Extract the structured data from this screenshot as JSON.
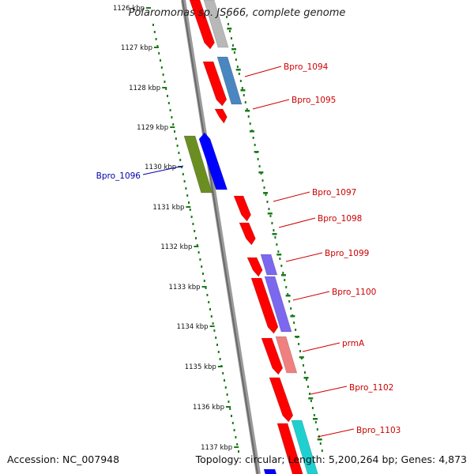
{
  "title": "Polaromonas sp. JS666, complete genome",
  "accession": "Accession: NC_007948",
  "topology": "Topology: circular; Length: 5,200,264 bp; Genes: 4,873",
  "ruler_labels": [
    "1126 kbp",
    "1127 kbp",
    "1128 kbp",
    "1129 kbp",
    "1130 kbp",
    "1131 kbp",
    "1132 kbp",
    "1133 kbp",
    "1134 kbp",
    "1135 kbp",
    "1136 kbp",
    "1137 kbp"
  ],
  "gene_labels": [
    {
      "text": "Bpro_1094",
      "color": "#cc0000"
    },
    {
      "text": "Bpro_1095",
      "color": "#cc0000"
    },
    {
      "text": "Bpro_1096",
      "color": "#0000aa"
    },
    {
      "text": "Bpro_1097",
      "color": "#cc0000"
    },
    {
      "text": "Bpro_1098",
      "color": "#cc0000"
    },
    {
      "text": "Bpro_1099",
      "color": "#cc0000"
    },
    {
      "text": "Bpro_1100",
      "color": "#cc0000"
    },
    {
      "text": "prmA",
      "color": "#cc0000"
    },
    {
      "text": "Bpro_1102",
      "color": "#cc0000"
    },
    {
      "text": "Bpro_1103",
      "color": "#cc0000"
    }
  ],
  "colors": {
    "backbone": "#808080",
    "ruler": "#1a7a1a",
    "gene_red": "#ff0000",
    "gene_grey": "#b8b8b8",
    "gene_steelblue": "#4a86c0",
    "gene_olive": "#6b8e23",
    "gene_blue": "#0000ff",
    "gene_purple": "#7b68ee",
    "gene_salmon": "#f08080",
    "gene_cyan": "#20d0d0"
  }
}
